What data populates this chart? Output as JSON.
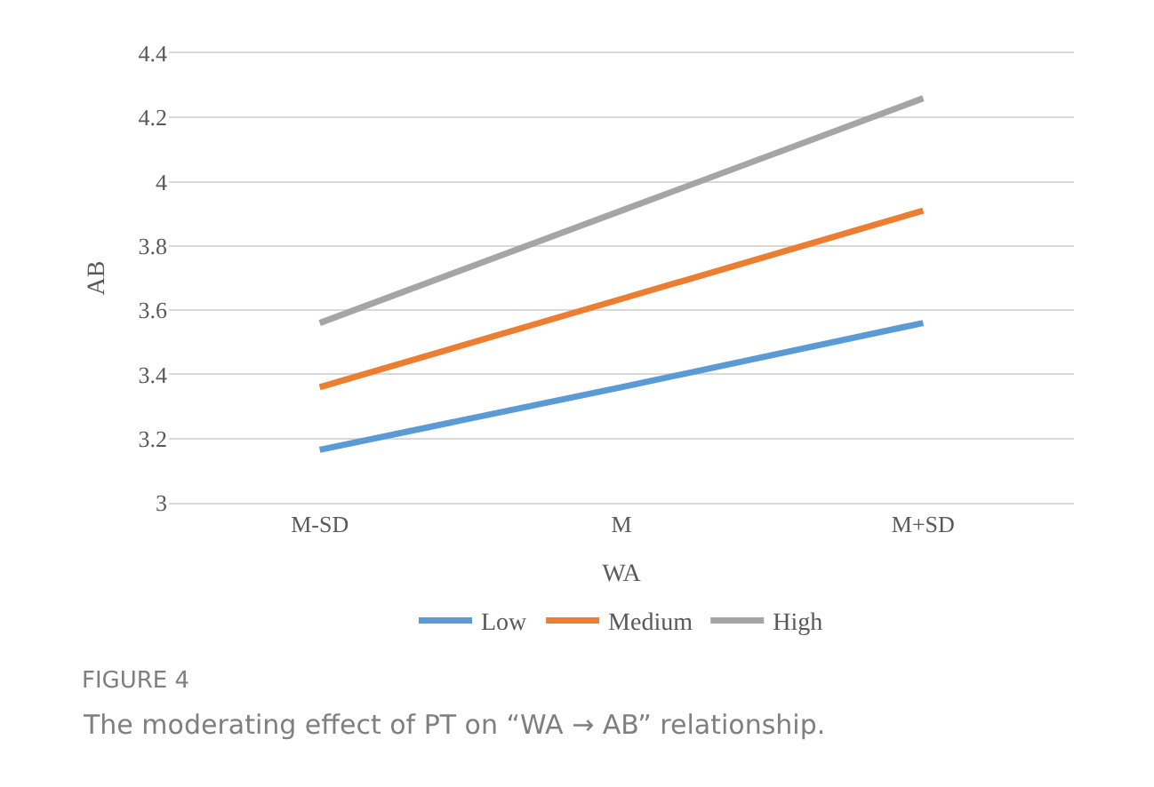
{
  "chart_data": {
    "type": "line",
    "title": "FIGURE 4",
    "subtitle": "The moderating effect of PT on “WA → AB” relationship.",
    "xlabel": "WA",
    "ylabel": "AB",
    "categories": [
      "M-SD",
      "M",
      "M+SD"
    ],
    "series": [
      {
        "name": "Low",
        "color": "#5b9bd5",
        "values": [
          3.165,
          3.36,
          3.56
        ]
      },
      {
        "name": "Medium",
        "color": "#ed7d31",
        "values": [
          3.36,
          3.635,
          3.91
        ]
      },
      {
        "name": "High",
        "color": "#a5a5a5",
        "values": [
          3.56,
          3.91,
          4.26
        ]
      }
    ],
    "ylim": [
      3,
      4.4
    ],
    "yticks": [
      3,
      3.2,
      3.4,
      3.6,
      3.8,
      4,
      4.2,
      4.4
    ],
    "grid": "y",
    "legend": "bottom",
    "marker": "none",
    "line_style": "solid"
  }
}
